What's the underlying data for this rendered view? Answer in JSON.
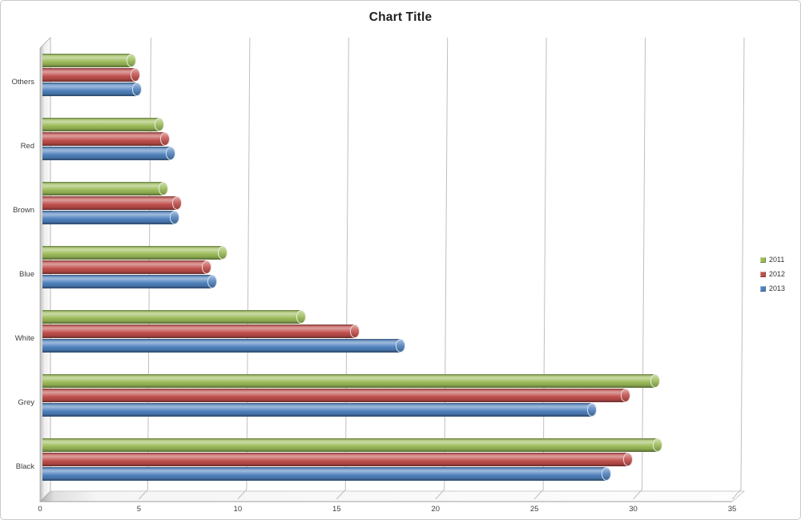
{
  "chart_data": {
    "type": "bar",
    "orientation": "horizontal",
    "style": "3d-cylinder-clustered",
    "title": "Chart Title",
    "categories": [
      "Others",
      "Red",
      "Brown",
      "Blue",
      "White",
      "Grey",
      "Black"
    ],
    "series": [
      {
        "name": "2011",
        "color": "#9BBB59",
        "values": [
          4.5,
          5.9,
          6.1,
          9.1,
          13.1,
          31.0,
          31.1
        ]
      },
      {
        "name": "2012",
        "color": "#C0504D",
        "values": [
          4.7,
          6.2,
          6.8,
          8.3,
          15.8,
          29.5,
          29.6
        ]
      },
      {
        "name": "2013",
        "color": "#4F81BD",
        "values": [
          4.8,
          6.5,
          6.7,
          8.6,
          18.1,
          27.8,
          28.5
        ]
      }
    ],
    "xlabel": "",
    "ylabel": "",
    "xlim": [
      0,
      35
    ],
    "xticks": [
      0,
      5,
      10,
      15,
      20,
      25,
      30,
      35
    ],
    "grid": true,
    "legend_position": "right",
    "legend_labels": [
      "2011",
      "2012",
      "2013"
    ]
  },
  "colors": {
    "gridline": "#bfbfbf",
    "axis_line": "#9f9f9f",
    "axis_text": "#3d3d3d",
    "wall_edge": "#a8a8a8",
    "background": "#ffffff",
    "series_2011": "#9BBB59",
    "series_2012": "#C0504D",
    "series_2013": "#4F81BD"
  }
}
